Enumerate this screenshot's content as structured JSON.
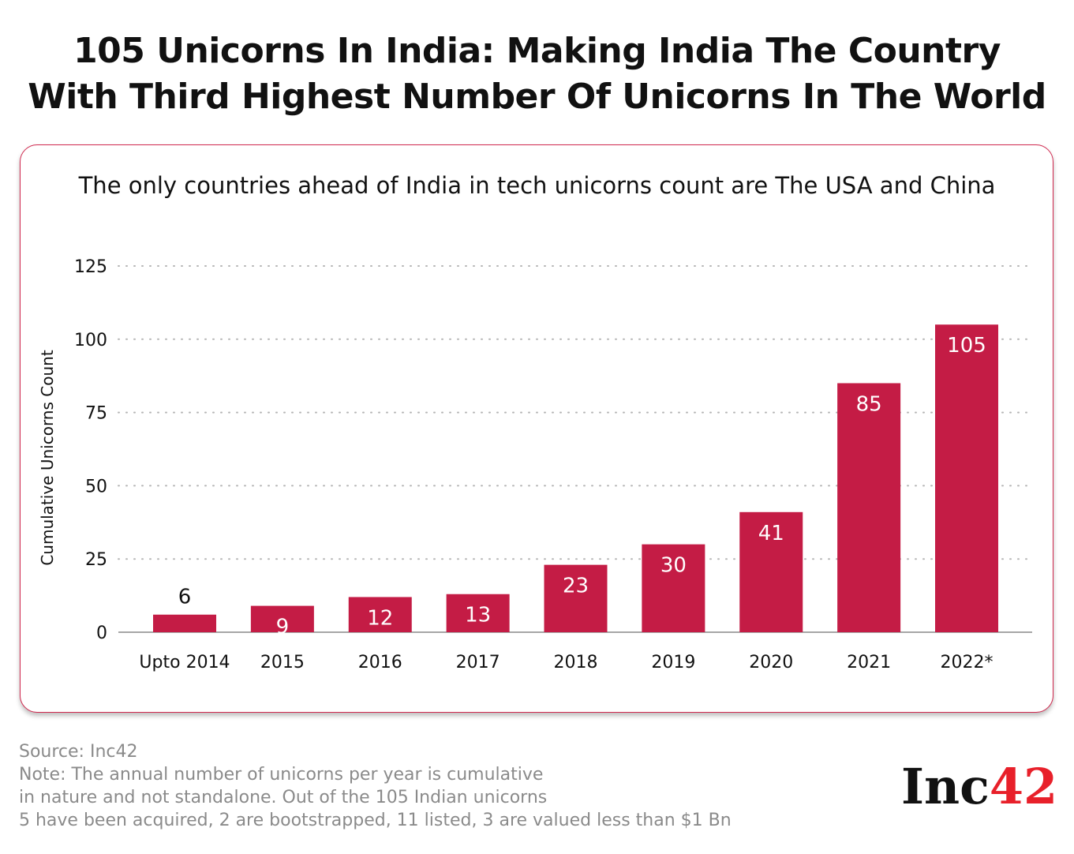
{
  "title_lines": [
    "105 Unicorns In India: Making India The Country",
    "With Third Highest Number Of Unicorns In The World"
  ],
  "footer": {
    "lines": [
      "Source: Inc42",
      "Note: The annual number of unicorns per year is cumulative",
      "in nature and not standalone. Out of the 105 Indian unicorns",
      "5 have been acquired, 2 are bootstrapped, 11 listed, 3 are valued less than $1 Bn"
    ]
  },
  "logo": {
    "text": "Inc",
    "number": "42"
  },
  "chart_data": {
    "type": "bar",
    "title": "The only countries ahead of India in tech unicorns count are The USA and China",
    "xlabel": "",
    "ylabel": "Cumulative Unicorns Count",
    "categories": [
      "Upto 2014",
      "2015",
      "2016",
      "2017",
      "2018",
      "2019",
      "2020",
      "2021",
      "2022*"
    ],
    "values": [
      6,
      9,
      12,
      13,
      23,
      30,
      41,
      85,
      105
    ],
    "ylim": [
      0,
      125
    ],
    "yticks": [
      0,
      25,
      50,
      75,
      100,
      125
    ],
    "grid": true,
    "bar_color": "#c41c45",
    "label_color_inside": "#ffffff"
  }
}
